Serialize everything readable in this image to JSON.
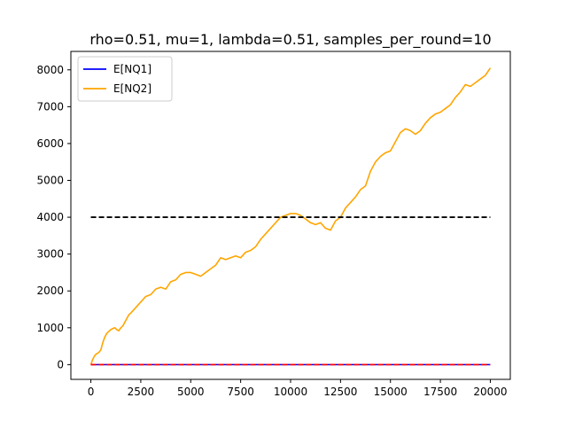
{
  "chart_data": {
    "type": "line",
    "title": "rho=0.51, mu=1, lambda=0.51, samples_per_round=10",
    "xlabel": "",
    "ylabel": "",
    "xlim": [
      -1000,
      21000
    ],
    "ylim": [
      -400,
      8500
    ],
    "xticks": [
      0,
      2500,
      5000,
      7500,
      10000,
      12500,
      15000,
      17500,
      20000
    ],
    "yticks": [
      0,
      1000,
      2000,
      3000,
      4000,
      5000,
      6000,
      7000,
      8000
    ],
    "grid": false,
    "legend_placement": "top-left",
    "series": [
      {
        "name": "E[NQ1]",
        "color": "#0000ff",
        "style": "solid",
        "x": [
          0,
          2500,
          5000,
          7500,
          10000,
          12500,
          15000,
          17500,
          20000
        ],
        "y": [
          0,
          0,
          0,
          0,
          0,
          0,
          0,
          0,
          0
        ]
      },
      {
        "name": "E[NQ2]",
        "color": "#ffa500",
        "style": "solid",
        "x": [
          0,
          100,
          200,
          300,
          400,
          500,
          600,
          700,
          800,
          900,
          1000,
          1100,
          1200,
          1300,
          1400,
          1500,
          1600,
          1700,
          1800,
          1900,
          2000,
          2250,
          2500,
          2750,
          3000,
          3250,
          3500,
          3750,
          4000,
          4250,
          4500,
          4750,
          5000,
          5250,
          5500,
          5750,
          6000,
          6250,
          6500,
          6750,
          7000,
          7250,
          7500,
          7750,
          8000,
          8250,
          8500,
          8750,
          9000,
          9250,
          9500,
          9750,
          10000,
          10250,
          10500,
          10750,
          11000,
          11250,
          11500,
          11750,
          12000,
          12250,
          12500,
          12750,
          13000,
          13250,
          13500,
          13750,
          14000,
          14250,
          14500,
          14750,
          15000,
          15250,
          15500,
          15750,
          16000,
          16250,
          16500,
          16750,
          17000,
          17250,
          17500,
          17750,
          18000,
          18250,
          18500,
          18750,
          19000,
          19250,
          19500,
          19750,
          20000
        ],
        "y": [
          0,
          150,
          250,
          300,
          330,
          400,
          600,
          750,
          850,
          900,
          950,
          980,
          1000,
          950,
          920,
          1000,
          1050,
          1150,
          1250,
          1350,
          1400,
          1550,
          1700,
          1850,
          1900,
          2050,
          2100,
          2050,
          2250,
          2300,
          2450,
          2500,
          2500,
          2450,
          2400,
          2500,
          2600,
          2700,
          2900,
          2850,
          2900,
          2950,
          2900,
          3050,
          3100,
          3200,
          3400,
          3550,
          3700,
          3850,
          4000,
          4050,
          4100,
          4100,
          4050,
          3950,
          3850,
          3800,
          3850,
          3700,
          3650,
          3900,
          4000,
          4250,
          4400,
          4550,
          4750,
          4850,
          5250,
          5500,
          5650,
          5750,
          5800,
          6050,
          6300,
          6400,
          6350,
          6250,
          6350,
          6550,
          6700,
          6800,
          6850,
          6950,
          7050,
          7250,
          7400,
          7600,
          7550,
          7650,
          7750,
          7850,
          8050
        ]
      },
      {
        "name": "",
        "color": "#000000",
        "style": "dashed",
        "x": [
          0,
          20000
        ],
        "y": [
          4000,
          4000
        ]
      },
      {
        "name": "",
        "color": "#ff0000",
        "style": "dashed",
        "x": [
          0,
          20000
        ],
        "y": [
          0,
          0
        ]
      }
    ]
  }
}
